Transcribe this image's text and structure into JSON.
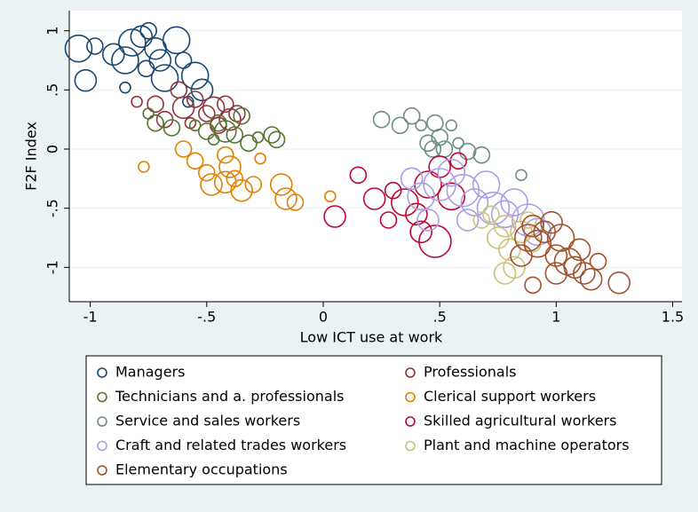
{
  "chart_data": {
    "type": "scatter",
    "x_label": "Low ICT use at work",
    "y_label": "F2F Index",
    "xlim": [
      -1.09,
      1.54
    ],
    "ylim": [
      -1.29,
      1.17
    ],
    "xticks": [
      -1,
      {
        "value": -0.5,
        "label": "-.5"
      },
      0,
      {
        "value": 0.5,
        "label": ".5"
      },
      1,
      1.5
    ],
    "yticks": [
      {
        "value": -1,
        "label": "-1"
      },
      {
        "value": -0.5,
        "label": "-.5"
      },
      0,
      {
        "value": 0.5,
        "label": ".5"
      },
      1
    ],
    "grid": true,
    "series": [
      {
        "name": "Managers",
        "color": "#1a476f",
        "x": [
          -1.05,
          -0.98,
          -1.02,
          -0.9,
          -0.85,
          -0.82,
          -0.78,
          -0.75,
          -0.72,
          -0.7,
          -0.68,
          -0.63,
          -0.6,
          -0.55,
          -0.52,
          -0.85,
          -0.76,
          -0.58
        ],
        "y": [
          0.85,
          0.87,
          0.58,
          0.8,
          0.75,
          0.9,
          0.95,
          1.0,
          0.85,
          0.75,
          0.6,
          0.92,
          0.75,
          0.62,
          0.5,
          0.52,
          0.68,
          0.4
        ],
        "sizes": [
          5,
          3,
          4,
          4,
          5,
          5,
          4,
          3,
          4,
          4,
          5,
          5,
          3,
          5,
          4,
          2,
          3,
          2
        ]
      },
      {
        "name": "Professionals",
        "color": "#90353b",
        "x": [
          -0.8,
          -0.72,
          -0.68,
          -0.62,
          -0.6,
          -0.55,
          -0.5,
          -0.47,
          -0.42,
          -0.4,
          -0.37,
          -0.57,
          -0.45
        ],
        "y": [
          0.4,
          0.38,
          0.25,
          0.5,
          0.35,
          0.42,
          0.3,
          0.35,
          0.38,
          0.25,
          0.3,
          0.22,
          0.2
        ],
        "sizes": [
          2,
          3,
          3,
          3,
          4,
          3,
          3,
          4,
          3,
          4,
          3,
          2,
          3
        ]
      },
      {
        "name": "Technicians and a. professionals",
        "color": "#55752f",
        "x": [
          -0.75,
          -0.72,
          -0.65,
          -0.55,
          -0.5,
          -0.47,
          -0.45,
          -0.42,
          -0.38,
          -0.35,
          -0.32,
          -0.28,
          -0.22,
          -0.2
        ],
        "y": [
          0.3,
          0.22,
          0.18,
          0.2,
          0.15,
          0.08,
          0.22,
          0.15,
          0.12,
          0.28,
          0.05,
          0.1,
          0.12,
          0.08
        ],
        "sizes": [
          2,
          3,
          3,
          2,
          3,
          2,
          3,
          4,
          3,
          3,
          3,
          2,
          3,
          3
        ]
      },
      {
        "name": "Clerical support workers",
        "color": "#e37e00",
        "x": [
          -0.77,
          -0.6,
          -0.55,
          -0.5,
          -0.48,
          -0.42,
          -0.4,
          -0.38,
          -0.35,
          -0.3,
          -0.27,
          -0.18,
          -0.16,
          -0.12,
          0.03,
          -0.42
        ],
        "y": [
          -0.15,
          0.0,
          -0.1,
          -0.2,
          -0.3,
          -0.05,
          -0.15,
          -0.25,
          -0.35,
          -0.3,
          -0.08,
          -0.3,
          -0.42,
          -0.45,
          -0.4,
          -0.28
        ],
        "sizes": [
          2,
          3,
          3,
          3,
          4,
          3,
          4,
          3,
          4,
          3,
          2,
          4,
          4,
          3,
          2,
          4
        ]
      },
      {
        "name": "Service and sales workers",
        "color": "#6e8e84",
        "x": [
          0.25,
          0.33,
          0.38,
          0.42,
          0.45,
          0.48,
          0.5,
          0.52,
          0.55,
          0.58,
          0.62,
          0.68,
          0.85,
          0.47
        ],
        "y": [
          0.25,
          0.2,
          0.28,
          0.2,
          0.05,
          0.22,
          0.1,
          0.0,
          0.2,
          0.05,
          -0.02,
          -0.05,
          -0.22,
          0.0
        ],
        "sizes": [
          3,
          3,
          3,
          2,
          3,
          3,
          3,
          3,
          2,
          2,
          3,
          3,
          2,
          3
        ]
      },
      {
        "name": "Skilled agricultural workers",
        "color": "#c10534",
        "x": [
          0.05,
          0.15,
          0.22,
          0.3,
          0.35,
          0.4,
          0.42,
          0.45,
          0.48,
          0.5,
          0.55,
          0.58,
          0.28
        ],
        "y": [
          -0.57,
          -0.22,
          -0.42,
          -0.35,
          -0.45,
          -0.55,
          -0.7,
          -0.3,
          -0.78,
          -0.15,
          -0.4,
          -0.1,
          -0.6
        ],
        "sizes": [
          4,
          3,
          4,
          3,
          5,
          4,
          4,
          5,
          6,
          4,
          5,
          3,
          3
        ]
      },
      {
        "name": "Craft and related trades workers",
        "color": "#a99ee6",
        "x": [
          0.38,
          0.42,
          0.5,
          0.55,
          0.6,
          0.65,
          0.7,
          0.73,
          0.78,
          0.82,
          0.88,
          0.92,
          0.62,
          0.45
        ],
        "y": [
          -0.25,
          -0.4,
          -0.3,
          -0.2,
          -0.35,
          -0.45,
          -0.3,
          -0.5,
          -0.55,
          -0.45,
          -0.6,
          -0.7,
          -0.6,
          -0.6
        ],
        "sizes": [
          4,
          5,
          6,
          5,
          6,
          5,
          5,
          6,
          5,
          5,
          6,
          5,
          4,
          4
        ]
      },
      {
        "name": "Plant and machine operators",
        "color": "#cac27e",
        "x": [
          0.68,
          0.72,
          0.75,
          0.78,
          0.8,
          0.82,
          0.85,
          0.88,
          0.9,
          0.78
        ],
        "y": [
          -0.6,
          -0.55,
          -0.75,
          -0.65,
          -0.85,
          -1.0,
          -0.7,
          -0.6,
          -0.8,
          -1.05
        ],
        "sizes": [
          3,
          3,
          4,
          4,
          4,
          4,
          4,
          3,
          3,
          4
        ]
      },
      {
        "name": "Elementary occupations",
        "color": "#a0522d",
        "x": [
          0.85,
          0.88,
          0.9,
          0.92,
          0.95,
          0.98,
          1.0,
          1.02,
          1.05,
          1.08,
          1.1,
          1.12,
          1.15,
          1.0,
          0.9,
          1.27,
          1.18
        ],
        "y": [
          -0.9,
          -0.75,
          -0.65,
          -0.8,
          -0.7,
          -0.62,
          -0.9,
          -0.75,
          -0.95,
          -1.0,
          -0.85,
          -1.05,
          -1.1,
          -1.05,
          -1.15,
          -1.13,
          -0.95
        ],
        "sizes": [
          4,
          5,
          4,
          5,
          4,
          4,
          4,
          5,
          5,
          4,
          4,
          4,
          4,
          4,
          3,
          4,
          3
        ]
      }
    ]
  }
}
